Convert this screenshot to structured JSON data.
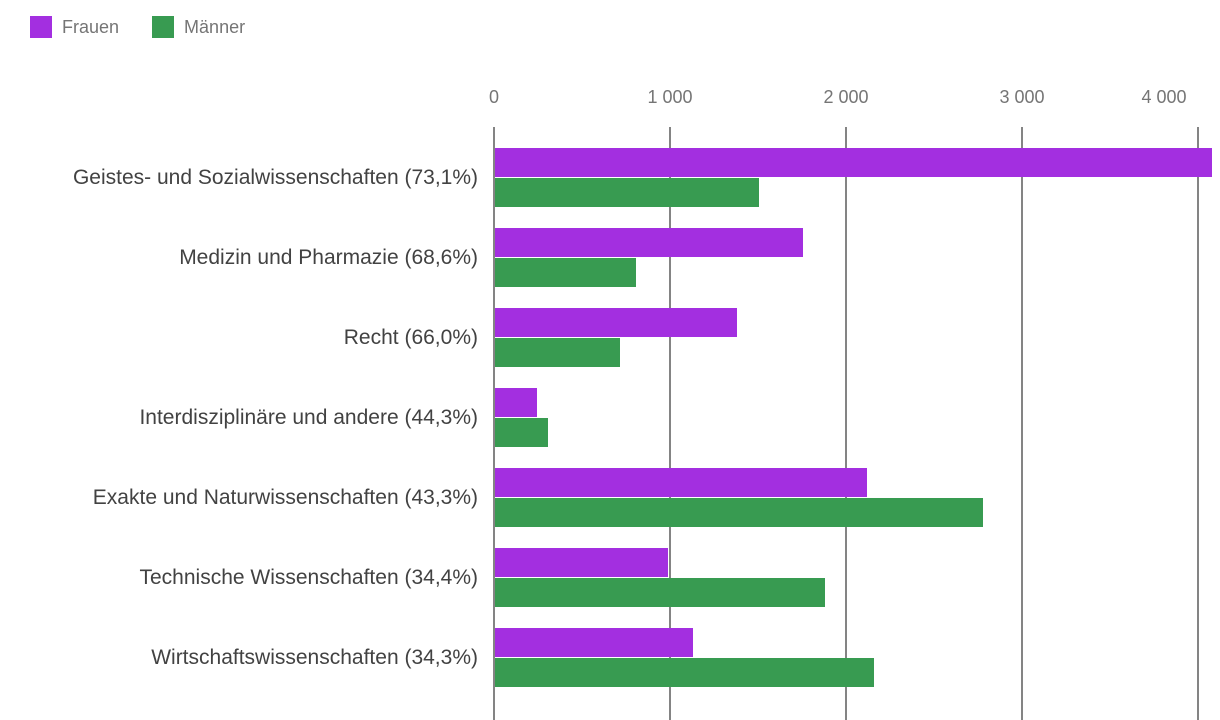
{
  "legend": {
    "items": [
      {
        "label": "Frauen",
        "color": "#a32fe0"
      },
      {
        "label": "Männer",
        "color": "#389b51"
      }
    ]
  },
  "chart_data": {
    "type": "bar",
    "orientation": "horizontal",
    "title": "",
    "categories": [
      "Geistes- und Sozialwissenschaften (73,1%)",
      "Medizin und Pharmazie (68,6%)",
      "Recht (66,0%)",
      "Interdisziplinäre und andere (44,3%)",
      "Exakte und Naturwissenschaften (43,3%)",
      "Technische Wissenschaften (34,4%)",
      "Wirtschaftswissenschaften (34,3%)"
    ],
    "series": [
      {
        "name": "Frauen",
        "color": "#a32fe0",
        "values": [
          4075,
          1750,
          1375,
          240,
          2115,
          985,
          1125
        ]
      },
      {
        "name": "Männer",
        "color": "#389b51",
        "values": [
          1500,
          800,
          708,
          302,
          2770,
          1875,
          2155
        ]
      }
    ],
    "x_axis": {
      "position": "top",
      "min": 0,
      "max": 4125,
      "ticks": [
        0,
        1000,
        2000,
        3000,
        4000
      ],
      "tick_labels": [
        "0",
        "1 000",
        "2 000",
        "3 000",
        "4 000"
      ]
    },
    "grid": true,
    "legend_position": "top-left",
    "gridline_color": "#848484",
    "tick_text_color": "#757575",
    "category_text_color": "#424242"
  }
}
